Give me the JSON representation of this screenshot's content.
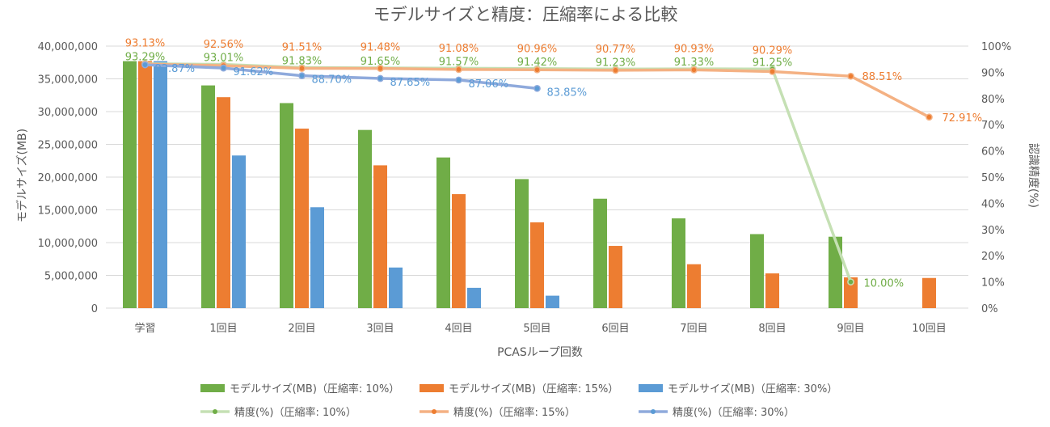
{
  "chart_data": {
    "type": "bar",
    "title": "モデルサイズと精度：圧縮率による比較",
    "xlabel": "PCASループ回数",
    "ylabel": "モデルサイズ(MB)",
    "y2label": "認識精度(%)",
    "ylim": [
      0,
      40000000
    ],
    "y2lim": [
      0,
      100
    ],
    "y_ticks": [
      "0",
      "5,000,000",
      "10,000,000",
      "15,000,000",
      "20,000,000",
      "25,000,000",
      "30,000,000",
      "35,000,000",
      "40,000,000"
    ],
    "y2_ticks": [
      "0%",
      "10%",
      "20%",
      "30%",
      "40%",
      "50%",
      "60%",
      "70%",
      "80%",
      "90%",
      "100%"
    ],
    "categories": [
      "学習",
      "1回目",
      "2回目",
      "3回目",
      "4回目",
      "5回目",
      "6回目",
      "7回目",
      "8回目",
      "9回目",
      "10回目"
    ],
    "grid": true,
    "legend_position": "bottom",
    "colors": {
      "green": "#70ad47",
      "orange": "#ed7d31",
      "blue": "#5b9bd5",
      "green_line": "#c5e0b4",
      "orange_line": "#f4b183",
      "blue_line": "#8faadc",
      "text": "#595959",
      "grid": "#d9d9d9"
    },
    "bar_series": [
      {
        "name": "モデルサイズ(MB)（圧縮率: 10%）",
        "color_key": "green",
        "values": [
          37700000,
          34000000,
          31300000,
          27200000,
          23000000,
          19700000,
          16700000,
          13700000,
          11300000,
          10900000,
          null
        ]
      },
      {
        "name": "モデルサイズ(MB)（圧縮率: 15%）",
        "color_key": "orange",
        "values": [
          37700000,
          32200000,
          27400000,
          21800000,
          17400000,
          13100000,
          9500000,
          6700000,
          5300000,
          4700000,
          4600000
        ]
      },
      {
        "name": "モデルサイズ(MB)（圧縮率: 30%）",
        "color_key": "blue",
        "values": [
          37700000,
          23300000,
          15400000,
          6200000,
          3100000,
          1900000,
          null,
          null,
          null,
          null,
          null
        ]
      }
    ],
    "line_series": [
      {
        "name": "精度(%)（圧縮率: 10%）",
        "color_key": "green",
        "line_key": "green_line",
        "values": [
          93.29,
          93.01,
          91.83,
          91.65,
          91.57,
          91.42,
          91.23,
          91.33,
          91.25,
          10.0,
          null
        ],
        "labels": [
          "93.29%",
          "93.01%",
          "91.83%",
          "91.65%",
          "91.57%",
          "91.42%",
          "91.23%",
          "91.33%",
          "91.25%",
          "10.00%",
          ""
        ]
      },
      {
        "name": "精度(%)（圧縮率: 15%）",
        "color_key": "orange",
        "line_key": "orange_line",
        "values": [
          93.13,
          92.56,
          91.51,
          91.48,
          91.08,
          90.96,
          90.77,
          90.93,
          90.29,
          88.51,
          72.91
        ],
        "labels": [
          "93.13%",
          "92.56%",
          "91.51%",
          "91.48%",
          "91.08%",
          "90.96%",
          "90.77%",
          "90.93%",
          "90.29%",
          "88.51%",
          "72.91%"
        ]
      },
      {
        "name": "精度(%)（圧縮率: 30%）",
        "color_key": "blue",
        "line_key": "blue_line",
        "values": [
          92.87,
          91.62,
          88.7,
          87.65,
          87.06,
          83.85,
          null,
          null,
          null,
          null,
          null
        ],
        "labels": [
          "92.87%",
          "91.62%",
          "88.70%",
          "87.65%",
          "87.06%",
          "83.85%",
          "",
          "",
          "",
          "",
          ""
        ]
      }
    ]
  }
}
